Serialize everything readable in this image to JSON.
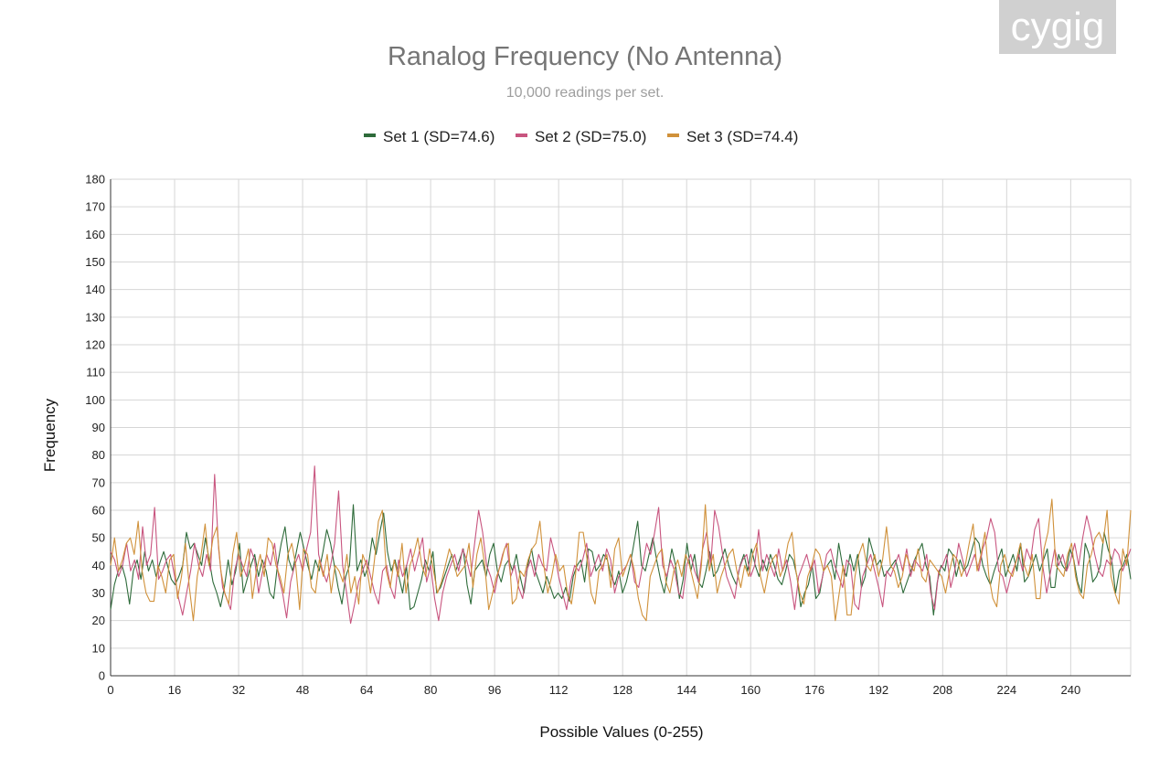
{
  "logo": {
    "text": "cygig"
  },
  "chart_data": {
    "type": "line",
    "title": "Ranalog Frequency (No Antenna)",
    "subtitle": "10,000 readings per set.",
    "xlabel": "Possible Values (0-255)",
    "ylabel": "Frequency",
    "xlim": [
      0,
      255
    ],
    "ylim": [
      0,
      180
    ],
    "x_ticks": [
      0,
      16,
      32,
      48,
      64,
      80,
      96,
      112,
      128,
      144,
      160,
      176,
      192,
      208,
      224,
      240
    ],
    "y_ticks": [
      0,
      10,
      20,
      30,
      40,
      50,
      60,
      70,
      80,
      90,
      100,
      110,
      120,
      130,
      140,
      150,
      160,
      170,
      180
    ],
    "grid": true,
    "legend": "top-center",
    "series": [
      {
        "name": "Set 1 (SD=74.6)",
        "color": "#2e6b3a",
        "values": [
          24,
          33,
          38,
          40,
          35,
          26,
          38,
          42,
          35,
          45,
          38,
          42,
          36,
          41,
          45,
          40,
          35,
          33,
          36,
          40,
          52,
          46,
          48,
          44,
          40,
          50,
          42,
          34,
          30,
          25,
          32,
          42,
          33,
          38,
          48,
          30,
          35,
          40,
          44,
          36,
          42,
          38,
          30,
          28,
          40,
          48,
          54,
          42,
          38,
          45,
          52,
          46,
          40,
          35,
          42,
          38,
          45,
          53,
          48,
          40,
          32,
          26,
          36,
          40,
          62,
          38,
          42,
          36,
          40,
          50,
          44,
          52,
          59,
          45,
          38,
          42,
          36,
          30,
          40,
          24,
          25,
          30,
          35,
          42,
          38,
          45,
          30,
          32,
          36,
          40,
          44,
          38,
          42,
          46,
          33,
          26,
          38,
          40,
          42,
          36,
          44,
          48,
          38,
          34,
          40,
          42,
          38,
          44,
          36,
          30,
          40,
          46,
          38,
          34,
          30,
          36,
          32,
          28,
          30,
          28,
          32,
          27,
          36,
          40,
          42,
          34,
          46,
          45,
          38,
          40,
          44,
          42,
          36,
          33,
          38,
          30,
          34,
          40,
          48,
          56,
          40,
          38,
          44,
          50,
          42,
          35,
          30,
          38,
          46,
          40,
          28,
          35,
          48,
          38,
          44,
          34,
          32,
          38,
          45,
          36,
          38,
          42,
          46,
          40,
          36,
          33,
          40,
          44,
          38,
          46,
          40,
          36,
          42,
          38,
          44,
          40,
          35,
          33,
          38,
          44,
          42,
          36,
          25,
          30,
          33,
          40,
          28,
          30,
          38,
          40,
          42,
          35,
          48,
          40,
          36,
          44,
          38,
          44,
          32,
          36,
          50,
          45,
          40,
          42,
          36,
          38,
          40,
          42,
          36,
          30,
          34,
          38,
          42,
          45,
          48,
          40,
          36,
          22,
          34,
          40,
          38,
          46,
          44,
          36,
          42,
          38,
          40,
          45,
          50,
          48,
          40,
          36,
          33,
          38,
          42,
          46,
          36,
          40,
          44,
          38,
          48,
          34,
          36,
          40,
          44,
          38,
          42,
          46,
          32,
          32,
          44,
          40,
          38,
          46,
          42,
          34,
          30,
          48,
          44,
          34,
          36,
          40,
          52,
          46,
          42,
          30,
          38,
          40,
          44,
          35
        ]
      },
      {
        "name": "Set 2 (SD=75.0)",
        "color": "#c8557f",
        "values": [
          45,
          42,
          36,
          40,
          48,
          38,
          42,
          35,
          54,
          40,
          44,
          61,
          35,
          38,
          42,
          44,
          36,
          28,
          22,
          30,
          38,
          48,
          40,
          36,
          44,
          38,
          73,
          46,
          32,
          28,
          24,
          38,
          44,
          40,
          36,
          46,
          42,
          30,
          38,
          44,
          40,
          48,
          36,
          30,
          21,
          34,
          40,
          44,
          38,
          46,
          52,
          76,
          44,
          38,
          34,
          40,
          48,
          67,
          40,
          30,
          19,
          26,
          34,
          38,
          42,
          36,
          30,
          26,
          38,
          40,
          32,
          28,
          42,
          36,
          40,
          46,
          38,
          44,
          50,
          34,
          40,
          28,
          20,
          30,
          36,
          40,
          44,
          38,
          46,
          42,
          36,
          48,
          60,
          52,
          40,
          36,
          30,
          38,
          44,
          48,
          36,
          40,
          32,
          28,
          38,
          42,
          36,
          44,
          40,
          38,
          50,
          44,
          36,
          30,
          24,
          34,
          40,
          38,
          42,
          48,
          36,
          40,
          44,
          38,
          46,
          42,
          30,
          36,
          38,
          40,
          44,
          34,
          32,
          40,
          48,
          44,
          52,
          61,
          40,
          36,
          42,
          38,
          30,
          28,
          40,
          44,
          38,
          34,
          46,
          52,
          40,
          60,
          54,
          44,
          36,
          32,
          28,
          38,
          42,
          44,
          36,
          40,
          53,
          38,
          44,
          40,
          36,
          46,
          38,
          42,
          34,
          24,
          36,
          40,
          44,
          38,
          42,
          30,
          36,
          44,
          46,
          40,
          36,
          32,
          42,
          40,
          26,
          24,
          36,
          40,
          44,
          38,
          32,
          25,
          38,
          36,
          40,
          44,
          38,
          46,
          36,
          42,
          40,
          38,
          44,
          30,
          24,
          38,
          40,
          44,
          32,
          38,
          48,
          42,
          36,
          40,
          44,
          38,
          46,
          50,
          57,
          52,
          38,
          36,
          30,
          36,
          40,
          44,
          38,
          46,
          42,
          53,
          57,
          40,
          30,
          38,
          46,
          40,
          44,
          38,
          42,
          48,
          40,
          50,
          58,
          52,
          44,
          38,
          36,
          42,
          40,
          46,
          44,
          38,
          42,
          46
        ]
      },
      {
        "name": "Set 3 (SD=74.4)",
        "color": "#d0913a",
        "values": [
          40,
          50,
          38,
          42,
          48,
          50,
          44,
          56,
          38,
          30,
          27,
          27,
          40,
          36,
          30,
          42,
          44,
          28,
          36,
          48,
          32,
          20,
          36,
          44,
          55,
          40,
          50,
          54,
          38,
          30,
          26,
          44,
          52,
          36,
          40,
          46,
          28,
          38,
          44,
          36,
          50,
          48,
          40,
          36,
          30,
          44,
          48,
          40,
          24,
          46,
          44,
          32,
          30,
          42,
          36,
          44,
          30,
          40,
          38,
          34,
          44,
          30,
          36,
          26,
          44,
          40,
          30,
          42,
          56,
          60,
          38,
          32,
          42,
          36,
          48,
          30,
          40,
          44,
          50,
          40,
          36,
          46,
          38,
          30,
          34,
          40,
          46,
          42,
          36,
          38,
          40,
          48,
          32,
          44,
          50,
          40,
          24,
          30,
          36,
          40,
          46,
          48,
          26,
          28,
          38,
          36,
          42,
          46,
          48,
          56,
          40,
          30,
          36,
          44,
          38,
          40,
          30,
          26,
          36,
          52,
          52,
          42,
          30,
          26,
          38,
          40,
          44,
          32,
          46,
          50,
          36,
          40,
          44,
          38,
          28,
          22,
          20,
          36,
          40,
          44,
          46,
          34,
          30,
          38,
          42,
          36,
          44,
          40,
          34,
          28,
          40,
          62,
          38,
          44,
          30,
          36,
          40,
          44,
          46,
          38,
          32,
          40,
          36,
          44,
          48,
          36,
          30,
          38,
          42,
          44,
          36,
          40,
          48,
          52,
          38,
          30,
          26,
          36,
          40,
          46,
          44,
          38,
          40,
          36,
          20,
          30,
          40,
          22,
          22,
          36,
          44,
          48,
          40,
          38,
          44,
          36,
          42,
          54,
          40,
          38,
          32,
          36,
          44,
          40,
          38,
          46,
          36,
          34,
          42,
          40,
          38,
          36,
          30,
          38,
          44,
          42,
          36,
          40,
          48,
          55,
          38,
          44,
          52,
          36,
          28,
          25,
          40,
          44,
          38,
          36,
          42,
          48,
          40,
          36,
          44,
          28,
          28,
          46,
          52,
          64,
          40,
          38,
          36,
          44,
          48,
          36,
          30,
          28,
          40,
          44,
          50,
          52,
          48,
          60,
          36,
          30,
          26,
          46,
          40,
          60
        ]
      }
    ]
  }
}
